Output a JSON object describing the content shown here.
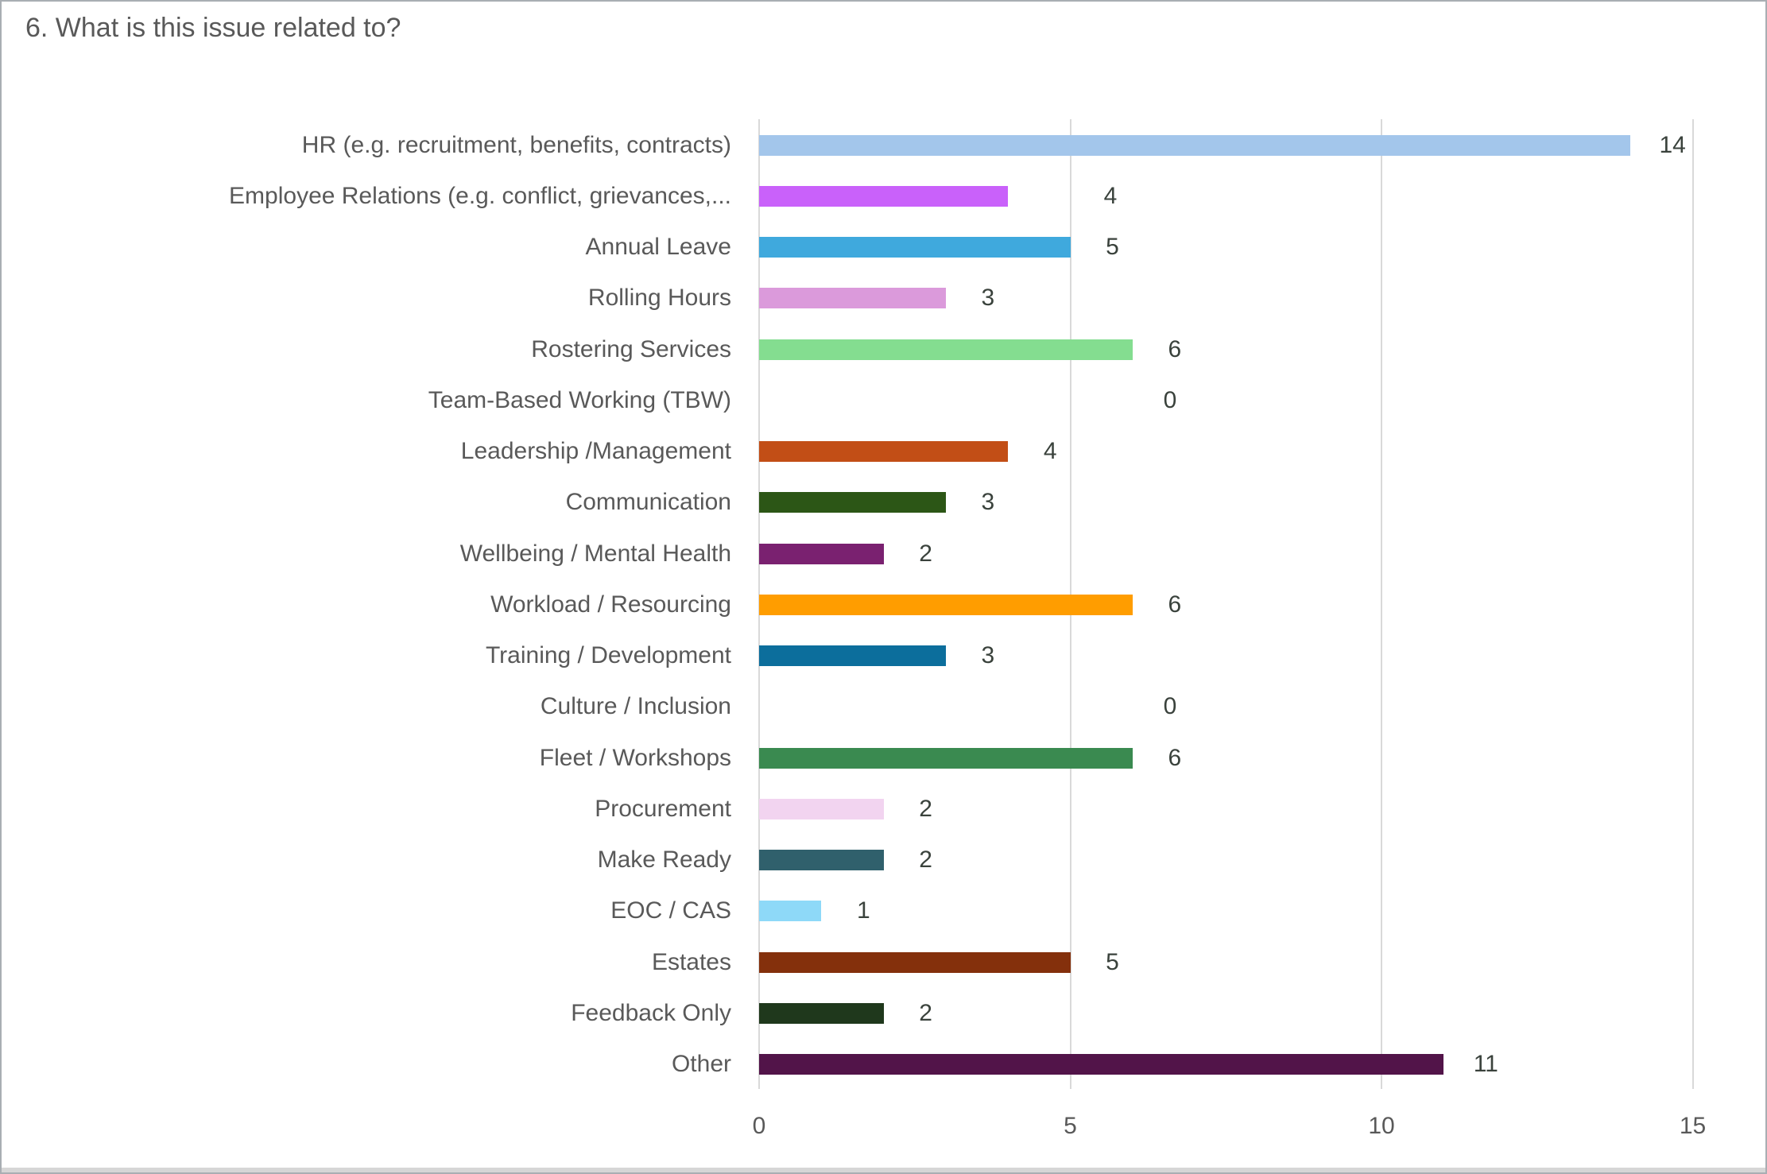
{
  "title": "6. What is this issue related to?",
  "chart_data": {
    "type": "bar",
    "orientation": "horizontal",
    "title": "6. What is this issue related to?",
    "categories": [
      "HR (e.g. recruitment, benefits, contracts)",
      "Employee Relations (e.g. conflict, grievances,...",
      "Annual Leave",
      "Rolling Hours",
      "Rostering Services",
      "Team-Based Working (TBW)",
      "Leadership /Management",
      "Communication",
      "Wellbeing / Mental Health",
      "Workload / Resourcing",
      "Training / Development",
      "Culture / Inclusion",
      "Fleet / Workshops",
      "Procurement",
      "Make Ready",
      "EOC / CAS",
      "Estates",
      "Feedback Only",
      "Other"
    ],
    "values": [
      14,
      4,
      5,
      3,
      6,
      0,
      4,
      3,
      2,
      6,
      3,
      0,
      6,
      2,
      2,
      1,
      5,
      2,
      11
    ],
    "value_labels": [
      "14",
      "4",
      "5",
      "3",
      "6",
      "0",
      "4",
      "3",
      "2",
      "6",
      "3",
      "0",
      "6",
      "2",
      "2",
      "1",
      "5",
      "2",
      "11"
    ],
    "bar_colors": [
      "#a3c6eb",
      "#c961fa",
      "#3fa9dd",
      "#db9adb",
      "#84dd90",
      null,
      "#c24e16",
      "#2c5616",
      "#7a2170",
      "#ff9d00",
      "#0c6e9c",
      null,
      "#3a8a50",
      "#f2d4f0",
      "#30606c",
      "#8ed9f8",
      "#84300c",
      "#1f381c",
      "#521449"
    ],
    "xlabel": "",
    "ylabel": "",
    "xlim": [
      0,
      15
    ],
    "x_ticks": [
      0,
      5,
      10,
      15
    ],
    "x_tick_labels": [
      "0",
      "5",
      "10",
      "15"
    ],
    "grid": true,
    "legend": false
  },
  "colors": {
    "title_text": "#595959",
    "category_text": "#595959",
    "value_text": "#3a423c",
    "tick_text": "#595959",
    "gridline": "#d9d9d9",
    "background": "#ffffff",
    "border": "#a9aeb3"
  }
}
